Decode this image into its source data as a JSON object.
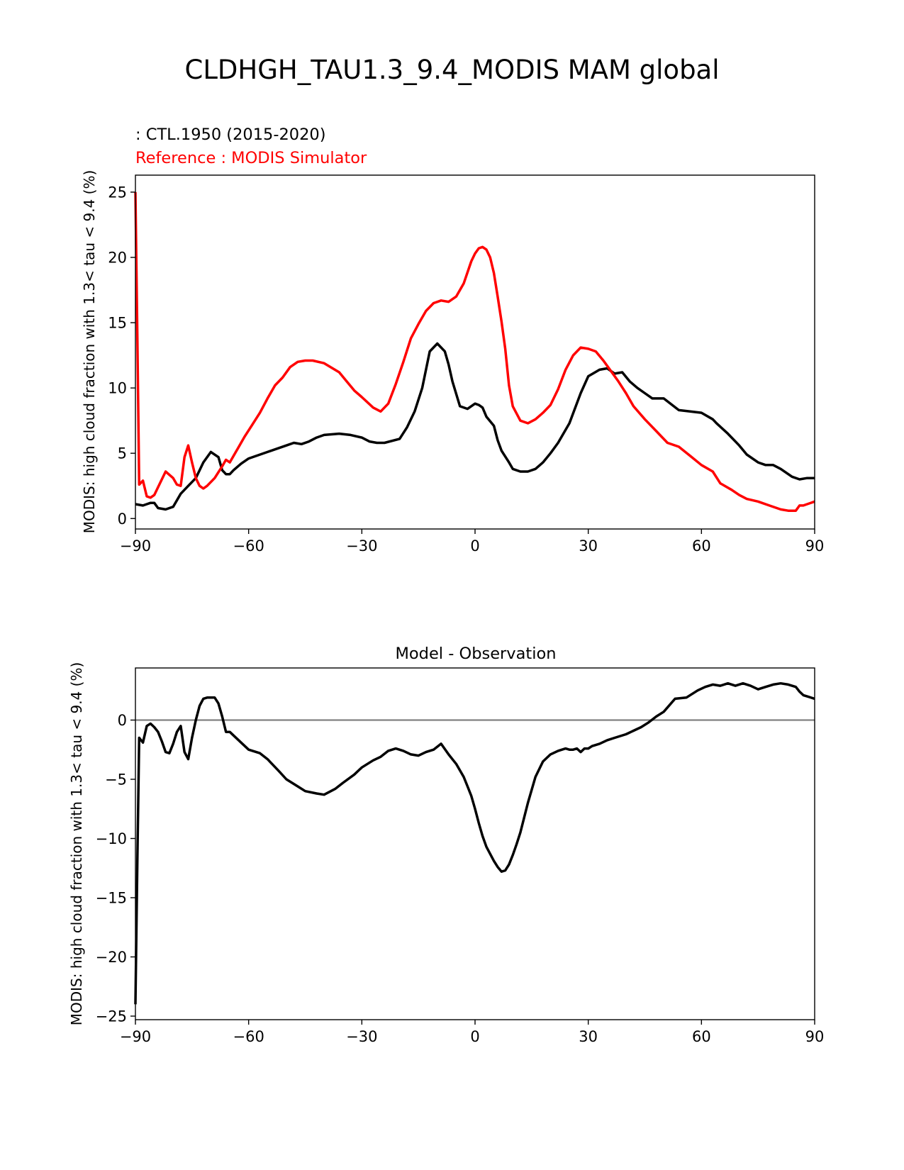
{
  "figure": {
    "suptitle": "CLDHGH_TAU1.3_9.4_MODIS MAM global",
    "colors": {
      "model": "#000000",
      "reference": "#ff0000",
      "zero_line": "#808080",
      "background": "#ffffff"
    }
  },
  "chart_data": [
    {
      "type": "line",
      "title_left_model": " : CTL.1950 (2015-2020)",
      "title_left_reference": "Reference : MODIS Simulator",
      "xlabel": "",
      "ylabel": "MODIS: high cloud fraction with 1.3< tau < 9.4 (%)",
      "xlim": [
        -90,
        90
      ],
      "ylim": [
        -0.8,
        26.3
      ],
      "xticks": [
        -90,
        -60,
        -30,
        0,
        30,
        60,
        90
      ],
      "xtick_labels": [
        "−90",
        "−60",
        "−30",
        "0",
        "30",
        "60",
        "90"
      ],
      "yticks": [
        0,
        5,
        10,
        15,
        20,
        25
      ],
      "ytick_labels": [
        "0",
        "5",
        "10",
        "15",
        "20",
        "25"
      ],
      "series": [
        {
          "name": "CTL.1950 (2015-2020)",
          "color": "#000000",
          "x": [
            -90,
            -88,
            -87,
            -86,
            -85,
            -84,
            -82,
            -80,
            -78,
            -76,
            -74,
            -72,
            -70,
            -68,
            -67,
            -66,
            -65,
            -64,
            -62,
            -60,
            -55,
            -50,
            -48,
            -46,
            -44,
            -42,
            -40,
            -36,
            -33,
            -30,
            -28,
            -26,
            -24,
            -20,
            -18,
            -16,
            -14,
            -12,
            -10,
            -8,
            -7,
            -6,
            -4,
            -2,
            0,
            1,
            2,
            3,
            5,
            6,
            7,
            9,
            10,
            12,
            14,
            16,
            18,
            20,
            22,
            25,
            28,
            30,
            33,
            35,
            37,
            39,
            41,
            43,
            45,
            47,
            50,
            54,
            57,
            60,
            63,
            64,
            67,
            70,
            72,
            75,
            77,
            79,
            81,
            84,
            86,
            88,
            90
          ],
          "values": [
            1.1,
            1.0,
            1.1,
            1.2,
            1.2,
            0.8,
            0.7,
            0.9,
            1.9,
            2.5,
            3.1,
            4.3,
            5.1,
            4.7,
            3.7,
            3.4,
            3.4,
            3.7,
            4.2,
            4.6,
            5.1,
            5.6,
            5.8,
            5.7,
            5.9,
            6.2,
            6.4,
            6.5,
            6.4,
            6.2,
            5.9,
            5.8,
            5.8,
            6.1,
            7.0,
            8.2,
            10.0,
            12.8,
            13.4,
            12.8,
            11.8,
            10.5,
            8.6,
            8.4,
            8.8,
            8.7,
            8.5,
            7.8,
            7.1,
            6.0,
            5.2,
            4.3,
            3.8,
            3.6,
            3.6,
            3.8,
            4.3,
            5.0,
            5.8,
            7.3,
            9.6,
            10.9,
            11.4,
            11.5,
            11.1,
            11.2,
            10.5,
            10.0,
            9.6,
            9.2,
            9.2,
            8.3,
            8.2,
            8.1,
            7.6,
            7.3,
            6.5,
            5.6,
            4.9,
            4.3,
            4.1,
            4.1,
            3.8,
            3.2,
            3.0,
            3.1,
            3.1
          ]
        },
        {
          "name": "MODIS Simulator",
          "color": "#ff0000",
          "x": [
            -90,
            -89.5,
            -89,
            -88,
            -87,
            -86,
            -85,
            -84,
            -82,
            -80,
            -79,
            -78,
            -77,
            -76,
            -75,
            -74,
            -73,
            -72,
            -71,
            -69,
            -67,
            -66,
            -65,
            -63,
            -61,
            -59,
            -57,
            -55,
            -53,
            -51,
            -49,
            -47,
            -45,
            -43,
            -40,
            -36,
            -34,
            -32,
            -30,
            -27,
            -25,
            -23,
            -21,
            -19,
            -17,
            -15,
            -13,
            -11,
            -9,
            -7,
            -5,
            -3,
            -1,
            0,
            1,
            2,
            3,
            4,
            5,
            6,
            7,
            8,
            9,
            10,
            12,
            14,
            16,
            18,
            20,
            22,
            24,
            26,
            28,
            30,
            32,
            34,
            36,
            38,
            40,
            42,
            45,
            48,
            51,
            54,
            57,
            60,
            63,
            65,
            68,
            70,
            72,
            75,
            78,
            81,
            83,
            85,
            86,
            87,
            88,
            90
          ],
          "values": [
            25.0,
            14.0,
            2.6,
            2.9,
            1.7,
            1.6,
            1.8,
            2.4,
            3.6,
            3.1,
            2.6,
            2.5,
            4.7,
            5.6,
            4.3,
            3.1,
            2.5,
            2.3,
            2.5,
            3.1,
            4.0,
            4.5,
            4.3,
            5.3,
            6.3,
            7.2,
            8.1,
            9.2,
            10.2,
            10.8,
            11.6,
            12.0,
            12.1,
            12.1,
            11.9,
            11.2,
            10.5,
            9.8,
            9.3,
            8.5,
            8.2,
            8.8,
            10.3,
            12.0,
            13.8,
            14.9,
            15.9,
            16.5,
            16.7,
            16.6,
            17.0,
            18.0,
            19.7,
            20.3,
            20.7,
            20.8,
            20.6,
            20.0,
            18.8,
            17.0,
            15.1,
            13.0,
            10.2,
            8.6,
            7.5,
            7.3,
            7.6,
            8.1,
            8.7,
            9.9,
            11.4,
            12.5,
            13.1,
            13.0,
            12.8,
            12.1,
            11.3,
            10.5,
            9.6,
            8.6,
            7.6,
            6.7,
            5.8,
            5.5,
            4.8,
            4.1,
            3.6,
            2.7,
            2.2,
            1.8,
            1.5,
            1.3,
            1.0,
            0.7,
            0.6,
            0.6,
            1.0,
            1.0,
            1.1,
            1.3
          ]
        }
      ]
    },
    {
      "type": "line",
      "title": "Model - Observation",
      "xlabel": "",
      "ylabel": "MODIS: high cloud fraction with 1.3< tau < 9.4 (%)",
      "xlim": [
        -90,
        90
      ],
      "ylim": [
        -25.3,
        4.4
      ],
      "xticks": [
        -90,
        -60,
        -30,
        0,
        30,
        60,
        90
      ],
      "xtick_labels": [
        "−90",
        "−60",
        "−30",
        "0",
        "30",
        "60",
        "90"
      ],
      "yticks": [
        0,
        -5,
        -10,
        -15,
        -20,
        -25
      ],
      "ytick_labels": [
        "0",
        "−5",
        "−10",
        "−15",
        "−20",
        "−25"
      ],
      "zero_line": 0,
      "series": [
        {
          "name": "Model - Observation",
          "color": "#000000",
          "x": [
            -90,
            -89.5,
            -89,
            -88,
            -87,
            -86,
            -85,
            -84,
            -83,
            -82,
            -81,
            -80,
            -79,
            -78,
            -77,
            -76,
            -75,
            -74,
            -73,
            -72,
            -71,
            -70,
            -69,
            -68,
            -67,
            -66,
            -65,
            -64,
            -62,
            -60,
            -57,
            -55,
            -52,
            -50,
            -47,
            -45,
            -42,
            -40,
            -37,
            -35,
            -32,
            -30,
            -27,
            -25,
            -23,
            -21,
            -19,
            -17,
            -15,
            -13,
            -11,
            -9,
            -7,
            -5,
            -3,
            -2,
            -1,
            0,
            1,
            2,
            3,
            4,
            5,
            6,
            7,
            8,
            9,
            10,
            11,
            12,
            14,
            16,
            18,
            20,
            22,
            24,
            25,
            26,
            27,
            28,
            29,
            30,
            31,
            33,
            35,
            37,
            40,
            42,
            44,
            46,
            48,
            50,
            53,
            56,
            59,
            61,
            63,
            65,
            67,
            69,
            71,
            73,
            75,
            77,
            79,
            81,
            83,
            85,
            86,
            87,
            88,
            90
          ],
          "values": [
            -24.0,
            -12.0,
            -1.5,
            -1.9,
            -0.5,
            -0.3,
            -0.6,
            -1.0,
            -1.8,
            -2.7,
            -2.8,
            -2.0,
            -1.0,
            -0.5,
            -2.7,
            -3.3,
            -1.5,
            0.0,
            1.2,
            1.8,
            1.9,
            1.9,
            1.9,
            1.4,
            0.3,
            -1.0,
            -1.0,
            -1.3,
            -1.9,
            -2.5,
            -2.8,
            -3.3,
            -4.3,
            -5.0,
            -5.6,
            -6.0,
            -6.2,
            -6.3,
            -5.8,
            -5.3,
            -4.6,
            -4.0,
            -3.4,
            -3.1,
            -2.6,
            -2.4,
            -2.6,
            -2.9,
            -3.0,
            -2.7,
            -2.5,
            -2.0,
            -2.9,
            -3.7,
            -4.8,
            -5.6,
            -6.4,
            -7.5,
            -8.7,
            -9.8,
            -10.7,
            -11.3,
            -11.9,
            -12.4,
            -12.8,
            -12.7,
            -12.2,
            -11.4,
            -10.5,
            -9.5,
            -7.0,
            -4.8,
            -3.5,
            -2.9,
            -2.6,
            -2.4,
            -2.5,
            -2.5,
            -2.4,
            -2.7,
            -2.4,
            -2.4,
            -2.2,
            -2.0,
            -1.7,
            -1.5,
            -1.2,
            -0.9,
            -0.6,
            -0.2,
            0.3,
            0.7,
            1.8,
            1.9,
            2.5,
            2.8,
            3.0,
            2.9,
            3.1,
            2.9,
            3.1,
            2.9,
            2.6,
            2.8,
            3.0,
            3.1,
            3.0,
            2.8,
            2.4,
            2.1,
            2.0,
            1.8
          ]
        }
      ]
    }
  ]
}
